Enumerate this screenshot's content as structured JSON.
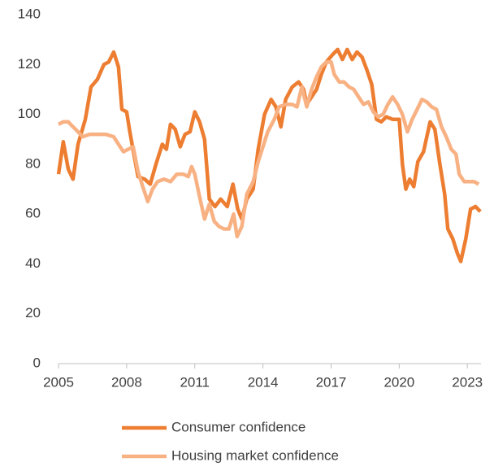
{
  "chart_data": {
    "type": "line",
    "xlim": [
      2005,
      2023.6
    ],
    "xticks": [
      2005,
      2008,
      2011,
      2014,
      2017,
      2020,
      2023
    ],
    "ylim": [
      0,
      140
    ],
    "yticks": [
      0,
      20,
      40,
      60,
      80,
      100,
      120,
      140
    ],
    "grid": false,
    "legend": "bottom",
    "series": [
      {
        "name": "Consumer confidence",
        "color": "#ED7D31",
        "x": [
          2005.0,
          2005.21,
          2005.43,
          2005.64,
          2005.86,
          2006.18,
          2006.43,
          2006.71,
          2007.0,
          2007.21,
          2007.43,
          2007.64,
          2007.79,
          2008.0,
          2008.14,
          2008.32,
          2008.5,
          2008.79,
          2009.04,
          2009.29,
          2009.57,
          2009.75,
          2009.93,
          2010.14,
          2010.36,
          2010.57,
          2010.79,
          2011.0,
          2011.21,
          2011.43,
          2011.64,
          2011.89,
          2012.14,
          2012.43,
          2012.68,
          2012.89,
          2013.07,
          2013.29,
          2013.57,
          2013.79,
          2014.07,
          2014.36,
          2014.57,
          2014.79,
          2015.0,
          2015.29,
          2015.57,
          2015.79,
          2015.93,
          2016.14,
          2016.36,
          2016.57,
          2016.79,
          2017.07,
          2017.29,
          2017.5,
          2017.71,
          2017.93,
          2018.14,
          2018.36,
          2018.57,
          2018.79,
          2019.0,
          2019.21,
          2019.43,
          2019.71,
          2020.0,
          2020.14,
          2020.29,
          2020.46,
          2020.64,
          2020.82,
          2021.07,
          2021.36,
          2021.57,
          2021.79,
          2022.0,
          2022.14,
          2022.36,
          2022.57,
          2022.71,
          2022.93,
          2023.14,
          2023.36,
          2023.57
        ],
        "values": [
          76,
          89,
          78,
          74,
          88,
          98,
          111,
          114,
          120,
          121,
          125,
          119,
          102,
          101,
          93,
          84,
          75,
          74,
          72,
          80,
          88,
          86,
          96,
          94,
          87,
          92,
          93,
          101,
          97,
          90,
          66,
          63,
          66,
          63,
          72,
          62,
          58,
          66,
          70,
          86,
          100,
          106,
          103,
          95,
          106,
          111,
          113,
          110,
          104,
          107,
          110,
          116,
          121,
          124,
          126,
          122,
          126,
          122,
          125,
          123,
          118,
          112,
          98,
          97,
          99,
          98,
          98,
          80,
          70,
          74,
          71,
          81,
          85,
          97,
          94,
          80,
          68,
          54,
          50,
          44,
          41,
          50,
          62,
          63,
          61
        ]
      },
      {
        "name": "Housing market confidence",
        "color": "#F8B183",
        "x": [
          2005.0,
          2005.21,
          2005.43,
          2005.64,
          2005.86,
          2006.07,
          2006.36,
          2006.71,
          2007.07,
          2007.43,
          2007.64,
          2007.86,
          2008.07,
          2008.29,
          2008.5,
          2008.71,
          2008.93,
          2009.14,
          2009.36,
          2009.64,
          2009.93,
          2010.21,
          2010.5,
          2010.71,
          2010.86,
          2011.0,
          2011.21,
          2011.43,
          2011.64,
          2011.86,
          2012.07,
          2012.29,
          2012.5,
          2012.71,
          2012.86,
          2013.07,
          2013.29,
          2013.57,
          2013.79,
          2014.0,
          2014.21,
          2014.5,
          2014.71,
          2015.0,
          2015.29,
          2015.5,
          2015.71,
          2015.93,
          2016.14,
          2016.36,
          2016.57,
          2016.79,
          2017.0,
          2017.14,
          2017.36,
          2017.57,
          2017.79,
          2018.0,
          2018.21,
          2018.43,
          2018.64,
          2018.86,
          2019.07,
          2019.29,
          2019.5,
          2019.71,
          2019.93,
          2020.14,
          2020.36,
          2020.57,
          2020.79,
          2021.0,
          2021.21,
          2021.43,
          2021.64,
          2021.86,
          2022.07,
          2022.29,
          2022.5,
          2022.64,
          2022.86,
          2023.07,
          2023.29,
          2023.5
        ],
        "values": [
          96,
          97,
          97,
          95,
          93,
          91,
          92,
          92,
          92,
          91,
          88,
          85,
          86,
          87,
          77,
          71,
          65,
          70,
          73,
          74,
          73,
          76,
          76,
          75,
          79,
          76,
          67,
          58,
          64,
          57,
          55,
          54,
          54,
          60,
          51,
          55,
          68,
          73,
          81,
          87,
          93,
          98,
          103,
          104,
          104,
          103,
          111,
          103,
          110,
          115,
          119,
          121,
          121,
          116,
          113,
          113,
          111,
          110,
          107,
          104,
          105,
          101,
          99,
          100,
          104,
          107,
          104,
          100,
          93,
          98,
          102,
          106,
          105,
          103,
          102,
          95,
          91,
          86,
          84,
          76,
          73,
          73,
          73,
          72
        ]
      }
    ]
  }
}
